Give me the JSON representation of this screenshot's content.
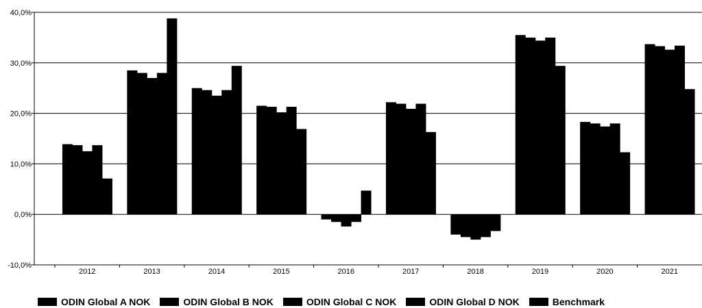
{
  "chart_data": {
    "type": "bar",
    "title": "",
    "xlabel": "",
    "ylabel": "",
    "categories": [
      "2012",
      "2013",
      "2014",
      "2015",
      "2016",
      "2017",
      "2018",
      "2019",
      "2020",
      "2021"
    ],
    "ylim": [
      -10,
      40
    ],
    "yticks": [
      -10,
      0,
      10,
      20,
      30,
      40
    ],
    "ytick_labels": [
      "-10,0%",
      "0,0%",
      "10,0%",
      "20,0%",
      "30,0%",
      "40,0%"
    ],
    "grid": "horizontal",
    "legend_position": "bottom",
    "series": [
      {
        "name": "ODIN Global A NOK",
        "color": "#000000",
        "values": [
          13.9,
          28.5,
          25.0,
          21.5,
          -1.0,
          22.2,
          -4.0,
          35.5,
          18.3,
          33.7
        ]
      },
      {
        "name": "ODIN Global B NOK",
        "color": "#000000",
        "values": [
          13.7,
          28.0,
          24.6,
          21.3,
          -1.5,
          21.9,
          -4.5,
          35.0,
          18.0,
          33.3
        ]
      },
      {
        "name": "ODIN Global C NOK",
        "color": "#000000",
        "values": [
          12.5,
          27.0,
          23.5,
          20.2,
          -2.4,
          20.9,
          -5.0,
          34.4,
          17.4,
          32.6
        ]
      },
      {
        "name": "ODIN Global D NOK",
        "color": "#000000",
        "values": [
          13.7,
          28.0,
          24.6,
          21.3,
          -1.5,
          21.9,
          -4.5,
          35.0,
          18.0,
          33.4
        ]
      },
      {
        "name": "Benchmark",
        "color": "#000000",
        "values": [
          7.1,
          38.8,
          29.4,
          16.9,
          4.7,
          16.3,
          -3.3,
          29.4,
          12.3,
          24.8
        ]
      }
    ]
  }
}
